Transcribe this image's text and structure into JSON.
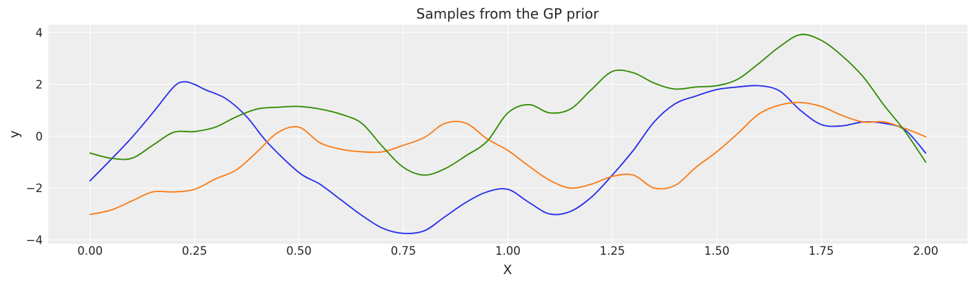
{
  "chart_data": {
    "type": "line",
    "title": "Samples from the GP prior",
    "xlabel": "X",
    "ylabel": "y",
    "xlim": [
      -0.1,
      2.1
    ],
    "ylim": [
      -4.15,
      4.3
    ],
    "grid": true,
    "legend": "none",
    "background_color": "#eeeeee",
    "grid_color": "#ffffff",
    "x_ticks": [
      0.0,
      0.25,
      0.5,
      0.75,
      1.0,
      1.25,
      1.5,
      1.75,
      2.0
    ],
    "x_tick_labels": [
      "0.00",
      "0.25",
      "0.50",
      "0.75",
      "1.00",
      "1.25",
      "1.50",
      "1.75",
      "2.00"
    ],
    "y_ticks": [
      -4,
      -2,
      0,
      2,
      4
    ],
    "y_tick_labels": [
      "−4",
      "−2",
      "0",
      "2",
      "4"
    ],
    "series": [
      {
        "color": "#2a2eec",
        "points": [
          [
            0.0,
            -1.72
          ],
          [
            0.05,
            -0.9
          ],
          [
            0.1,
            -0.05
          ],
          [
            0.15,
            0.9
          ],
          [
            0.2,
            1.9
          ],
          [
            0.225,
            2.1
          ],
          [
            0.25,
            2.0
          ],
          [
            0.275,
            1.8
          ],
          [
            0.325,
            1.45
          ],
          [
            0.375,
            0.75
          ],
          [
            0.425,
            -0.25
          ],
          [
            0.5,
            -1.4
          ],
          [
            0.55,
            -1.85
          ],
          [
            0.6,
            -2.45
          ],
          [
            0.65,
            -3.05
          ],
          [
            0.7,
            -3.55
          ],
          [
            0.75,
            -3.75
          ],
          [
            0.8,
            -3.65
          ],
          [
            0.85,
            -3.1
          ],
          [
            0.9,
            -2.55
          ],
          [
            0.95,
            -2.15
          ],
          [
            1.0,
            -2.05
          ],
          [
            1.05,
            -2.55
          ],
          [
            1.1,
            -3.0
          ],
          [
            1.15,
            -2.9
          ],
          [
            1.2,
            -2.35
          ],
          [
            1.25,
            -1.5
          ],
          [
            1.3,
            -0.55
          ],
          [
            1.35,
            0.55
          ],
          [
            1.4,
            1.25
          ],
          [
            1.45,
            1.55
          ],
          [
            1.5,
            1.8
          ],
          [
            1.55,
            1.9
          ],
          [
            1.6,
            1.95
          ],
          [
            1.65,
            1.75
          ],
          [
            1.7,
            1.0
          ],
          [
            1.75,
            0.45
          ],
          [
            1.8,
            0.4
          ],
          [
            1.85,
            0.55
          ],
          [
            1.9,
            0.5
          ],
          [
            1.95,
            0.25
          ],
          [
            2.0,
            -0.65
          ]
        ]
      },
      {
        "color": "#fa7c17",
        "points": [
          [
            0.0,
            -3.02
          ],
          [
            0.05,
            -2.85
          ],
          [
            0.1,
            -2.5
          ],
          [
            0.15,
            -2.15
          ],
          [
            0.2,
            -2.15
          ],
          [
            0.25,
            -2.05
          ],
          [
            0.3,
            -1.65
          ],
          [
            0.35,
            -1.3
          ],
          [
            0.4,
            -0.6
          ],
          [
            0.45,
            0.15
          ],
          [
            0.5,
            0.35
          ],
          [
            0.55,
            -0.25
          ],
          [
            0.6,
            -0.5
          ],
          [
            0.65,
            -0.6
          ],
          [
            0.7,
            -0.6
          ],
          [
            0.75,
            -0.35
          ],
          [
            0.8,
            -0.05
          ],
          [
            0.85,
            0.5
          ],
          [
            0.9,
            0.5
          ],
          [
            0.95,
            -0.1
          ],
          [
            1.0,
            -0.55
          ],
          [
            1.05,
            -1.15
          ],
          [
            1.1,
            -1.7
          ],
          [
            1.15,
            -2.0
          ],
          [
            1.2,
            -1.85
          ],
          [
            1.25,
            -1.55
          ],
          [
            1.3,
            -1.5
          ],
          [
            1.35,
            -2.0
          ],
          [
            1.4,
            -1.9
          ],
          [
            1.45,
            -1.2
          ],
          [
            1.5,
            -0.6
          ],
          [
            1.55,
            0.1
          ],
          [
            1.6,
            0.85
          ],
          [
            1.65,
            1.2
          ],
          [
            1.7,
            1.3
          ],
          [
            1.75,
            1.15
          ],
          [
            1.8,
            0.8
          ],
          [
            1.85,
            0.55
          ],
          [
            1.9,
            0.55
          ],
          [
            1.95,
            0.3
          ],
          [
            2.0,
            -0.02
          ]
        ]
      },
      {
        "color": "#328c06",
        "points": [
          [
            0.0,
            -0.65
          ],
          [
            0.05,
            -0.85
          ],
          [
            0.1,
            -0.85
          ],
          [
            0.15,
            -0.35
          ],
          [
            0.2,
            0.15
          ],
          [
            0.25,
            0.18
          ],
          [
            0.3,
            0.35
          ],
          [
            0.35,
            0.75
          ],
          [
            0.4,
            1.05
          ],
          [
            0.45,
            1.12
          ],
          [
            0.5,
            1.15
          ],
          [
            0.55,
            1.05
          ],
          [
            0.6,
            0.85
          ],
          [
            0.65,
            0.5
          ],
          [
            0.7,
            -0.4
          ],
          [
            0.75,
            -1.2
          ],
          [
            0.8,
            -1.5
          ],
          [
            0.85,
            -1.25
          ],
          [
            0.9,
            -0.75
          ],
          [
            0.95,
            -0.2
          ],
          [
            1.0,
            0.9
          ],
          [
            1.05,
            1.22
          ],
          [
            1.1,
            0.9
          ],
          [
            1.15,
            1.05
          ],
          [
            1.2,
            1.8
          ],
          [
            1.25,
            2.5
          ],
          [
            1.3,
            2.45
          ],
          [
            1.35,
            2.05
          ],
          [
            1.4,
            1.82
          ],
          [
            1.45,
            1.9
          ],
          [
            1.5,
            1.95
          ],
          [
            1.55,
            2.2
          ],
          [
            1.6,
            2.8
          ],
          [
            1.65,
            3.45
          ],
          [
            1.7,
            3.92
          ],
          [
            1.75,
            3.7
          ],
          [
            1.8,
            3.1
          ],
          [
            1.85,
            2.3
          ],
          [
            1.9,
            1.2
          ],
          [
            1.95,
            0.2
          ],
          [
            2.0,
            -1.0
          ]
        ]
      }
    ]
  }
}
